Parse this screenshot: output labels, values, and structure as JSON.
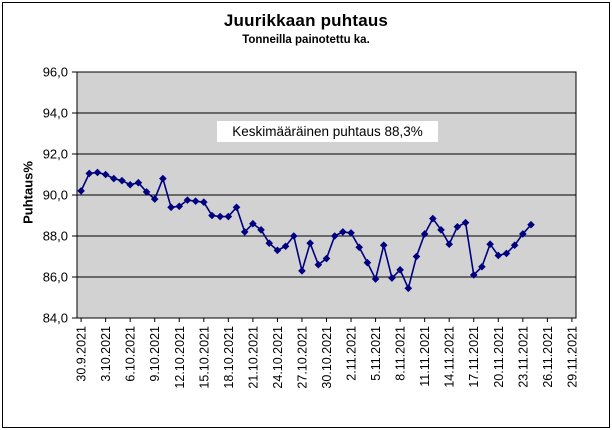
{
  "chart_data": {
    "type": "line",
    "title": "Juurikkaan puhtaus",
    "subtitle": "Tonneilla painotettu ka.",
    "ylabel": "Puhtaus%",
    "xlabel": "",
    "ylim": [
      84.0,
      96.0
    ],
    "ytick_step": 2.0,
    "ytick_labels": [
      "96,0",
      "94,0",
      "92,0",
      "90,0",
      "88,0",
      "86,0",
      "84,0"
    ],
    "n_categories": 61,
    "xtick_label_interval": 3,
    "xtick_labels": [
      "30.9.2021",
      "3.10.2021",
      "6.10.2021",
      "9.10.2021",
      "12.10.2021",
      "15.10.2021",
      "18.10.2021",
      "21.10.2021",
      "24.10.2021",
      "27.10.2021",
      "30.10.2021",
      "2.11.2021",
      "5.11.2021",
      "8.11.2021",
      "11.11.2021",
      "14.11.2021",
      "17.11.2021",
      "20.11.2021",
      "23.11.2021",
      "26.11.2021",
      "29.11.2021"
    ],
    "annotation": "Keskimääräinen puhtaus 88,3%",
    "average_purity": "88,3%",
    "grid": "horizontal",
    "legend": "none",
    "marker": "diamond",
    "colors": {
      "line": "#000080",
      "marker": "#000080",
      "plot_bg": "#d2d2d2",
      "gridline": "#000000",
      "axis": "#000000",
      "annotation_bg": "#ffffff"
    },
    "series": [
      {
        "name": "Puhtaus%",
        "dates": [
          "30.9.2021",
          "1.10.2021",
          "2.10.2021",
          "3.10.2021",
          "4.10.2021",
          "5.10.2021",
          "6.10.2021",
          "7.10.2021",
          "8.10.2021",
          "9.10.2021",
          "10.10.2021",
          "11.10.2021",
          "12.10.2021",
          "13.10.2021",
          "14.10.2021",
          "15.10.2021",
          "16.10.2021",
          "17.10.2021",
          "18.10.2021",
          "19.10.2021",
          "20.10.2021",
          "21.10.2021",
          "22.10.2021",
          "23.10.2021",
          "24.10.2021",
          "25.10.2021",
          "26.10.2021",
          "27.10.2021",
          "28.10.2021",
          "29.10.2021",
          "30.10.2021",
          "31.10.2021",
          "1.11.2021",
          "2.11.2021",
          "3.11.2021",
          "4.11.2021",
          "5.11.2021",
          "6.11.2021",
          "7.11.2021",
          "8.11.2021",
          "9.11.2021",
          "10.11.2021",
          "11.11.2021",
          "12.11.2021",
          "13.11.2021",
          "14.11.2021",
          "15.11.2021",
          "16.11.2021",
          "17.11.2021",
          "18.11.2021",
          "19.11.2021",
          "20.11.2021",
          "21.11.2021",
          "22.11.2021",
          "23.11.2021",
          "24.11.2021"
        ],
        "values": [
          90.2,
          91.05,
          91.1,
          91.0,
          90.8,
          90.7,
          90.5,
          90.6,
          90.15,
          89.8,
          90.8,
          89.4,
          89.45,
          89.75,
          89.7,
          89.65,
          89.0,
          88.95,
          88.95,
          89.4,
          88.2,
          88.6,
          88.3,
          87.65,
          87.3,
          87.5,
          88.0,
          86.3,
          87.65,
          86.6,
          86.9,
          88.0,
          88.2,
          88.15,
          87.45,
          86.7,
          85.9,
          87.55,
          85.95,
          86.35,
          85.45,
          87.0,
          88.1,
          88.85,
          88.3,
          87.6,
          88.45,
          88.65,
          86.1,
          86.5,
          87.6,
          87.05,
          87.15,
          87.55,
          88.1,
          88.55
        ]
      }
    ]
  }
}
